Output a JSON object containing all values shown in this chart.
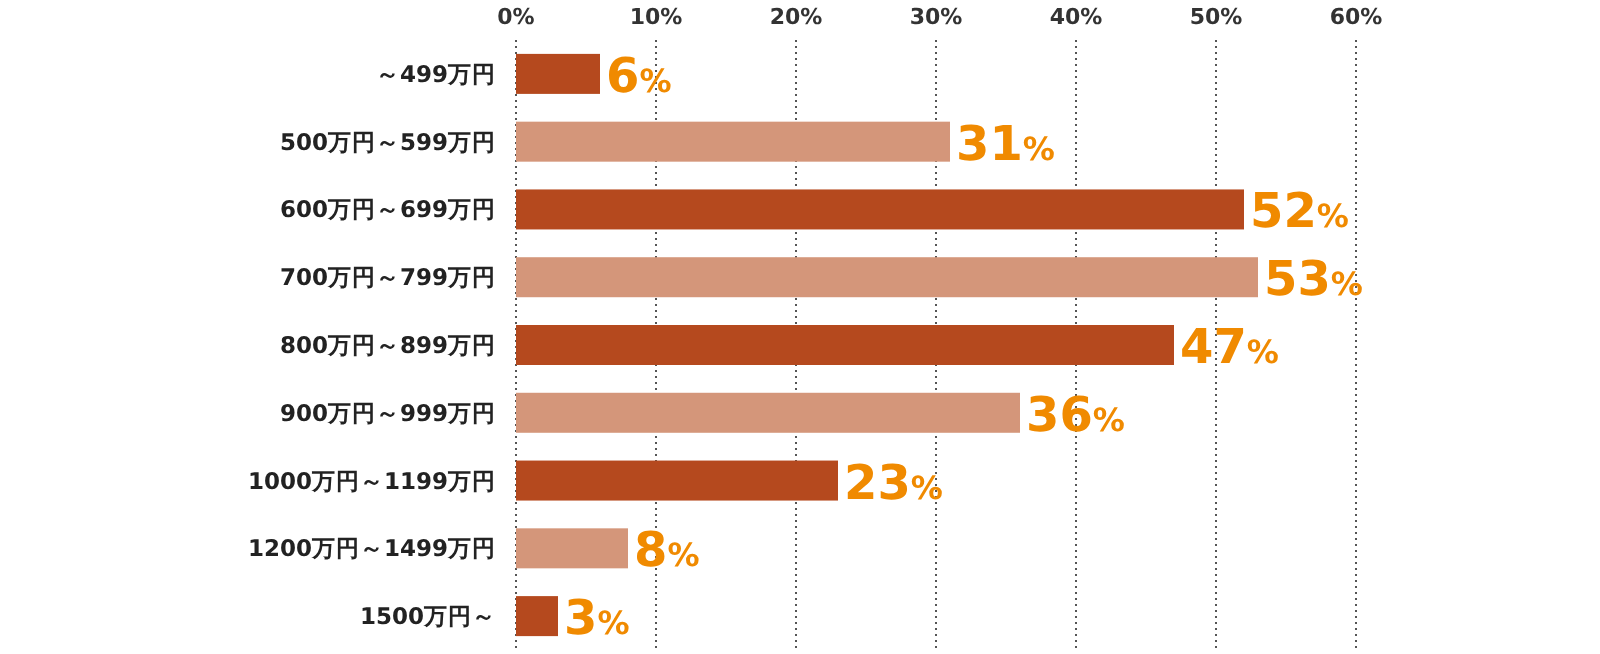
{
  "chart_data": {
    "type": "bar",
    "orientation": "horizontal",
    "categories": [
      "～499万円",
      "500万円～599万円",
      "600万円～699万円",
      "700万円～799万円",
      "800万円～899万円",
      "900万円～999万円",
      "1000万円～1199万円",
      "1200万円～1499万円",
      "1500万円～"
    ],
    "values": [
      6,
      31,
      52,
      53,
      47,
      36,
      23,
      8,
      3
    ],
    "colors": [
      "#b5491e",
      "#d4967a",
      "#b5491e",
      "#d4967a",
      "#b5491e",
      "#d4967a",
      "#b5491e",
      "#d4967a",
      "#b5491e"
    ],
    "value_labels": [
      "6%",
      "31%",
      "52%",
      "53%",
      "47%",
      "36%",
      "23%",
      "8%",
      "3%"
    ],
    "xlim": [
      0,
      60
    ],
    "xticks": [
      {
        "value": 0,
        "label": "0%"
      },
      {
        "value": 10,
        "label": "10%"
      },
      {
        "value": 20,
        "label": "20%"
      },
      {
        "value": 30,
        "label": "30%"
      },
      {
        "value": 40,
        "label": "40%"
      },
      {
        "value": 50,
        "label": "50%"
      },
      {
        "value": 60,
        "label": "60%"
      }
    ],
    "grid": "x"
  }
}
